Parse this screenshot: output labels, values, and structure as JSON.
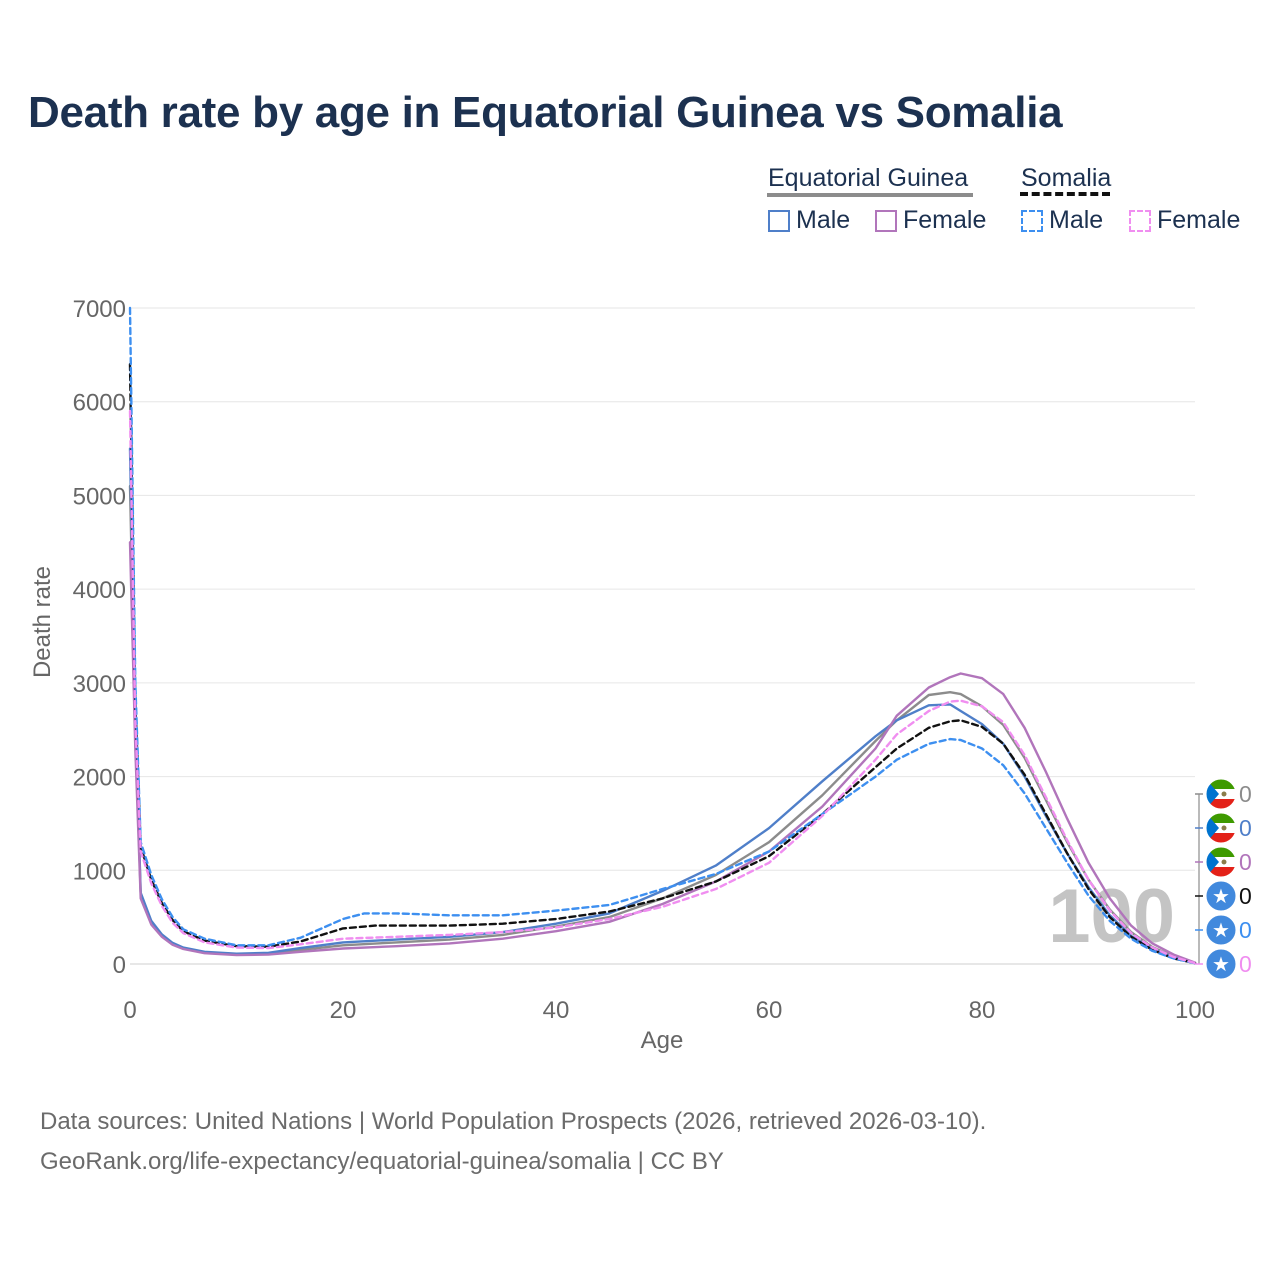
{
  "title": "Death rate by age in Equatorial Guinea vs Somalia",
  "legend": {
    "groups": [
      {
        "country": "Equatorial Guinea",
        "style": "solid",
        "color": "#8c8c8c",
        "items": [
          {
            "label": "Male",
            "color": "#4f7fc9"
          },
          {
            "label": "Female",
            "color": "#b175bb"
          }
        ]
      },
      {
        "country": "Somalia",
        "style": "dashed",
        "color": "#111111",
        "items": [
          {
            "label": "Male",
            "color": "#3d8ff0"
          },
          {
            "label": "Female",
            "color": "#f08ef0"
          }
        ]
      }
    ]
  },
  "year_watermark": "100",
  "badges": [
    {
      "flag": "equatorial-guinea",
      "value": "0",
      "color": "#8c8c8c"
    },
    {
      "flag": "equatorial-guinea",
      "value": "0",
      "color": "#4f7fc9"
    },
    {
      "flag": "equatorial-guinea",
      "value": "0",
      "color": "#b175bb"
    },
    {
      "flag": "somalia",
      "value": "0",
      "color": "#111111"
    },
    {
      "flag": "somalia",
      "value": "0",
      "color": "#3d8ff0"
    },
    {
      "flag": "somalia",
      "value": "0",
      "color": "#f08ef0"
    }
  ],
  "footer": {
    "line1": "Data sources: United Nations | World Population Prospects (2026, retrieved 2026-03-10).",
    "line2": "GeoRank.org/life-expectancy/equatorial-guinea/somalia | CC BY"
  },
  "chart_data": {
    "type": "line",
    "title": "Death rate by age in Equatorial Guinea vs Somalia",
    "xlabel": "Age",
    "ylabel": "Death rate",
    "xlim": [
      0,
      100
    ],
    "ylim": [
      0,
      7000
    ],
    "xticks": [
      0,
      20,
      40,
      60,
      80,
      100
    ],
    "yticks": [
      0,
      1000,
      2000,
      3000,
      4000,
      5000,
      6000,
      7000
    ],
    "grid": true,
    "series": [
      {
        "name": "Equatorial Guinea (total)",
        "color": "#8c8c8c",
        "dash": false,
        "points": [
          [
            0,
            5100
          ],
          [
            0.5,
            2500
          ],
          [
            1,
            750
          ],
          [
            2,
            450
          ],
          [
            3,
            310
          ],
          [
            4,
            220
          ],
          [
            5,
            170
          ],
          [
            7,
            125
          ],
          [
            10,
            105
          ],
          [
            13,
            110
          ],
          [
            16,
            150
          ],
          [
            20,
            200
          ],
          [
            25,
            230
          ],
          [
            30,
            260
          ],
          [
            35,
            310
          ],
          [
            40,
            400
          ],
          [
            45,
            500
          ],
          [
            50,
            700
          ],
          [
            55,
            950
          ],
          [
            60,
            1300
          ],
          [
            65,
            1800
          ],
          [
            70,
            2380
          ],
          [
            72,
            2600
          ],
          [
            75,
            2870
          ],
          [
            77,
            2900
          ],
          [
            78,
            2880
          ],
          [
            80,
            2750
          ],
          [
            82,
            2550
          ],
          [
            84,
            2200
          ],
          [
            86,
            1750
          ],
          [
            88,
            1300
          ],
          [
            90,
            900
          ],
          [
            92,
            580
          ],
          [
            94,
            340
          ],
          [
            96,
            180
          ],
          [
            98,
            80
          ],
          [
            100,
            10
          ]
        ]
      },
      {
        "name": "Equatorial Guinea Male",
        "color": "#4f7fc9",
        "dash": false,
        "points": [
          [
            0,
            5500
          ],
          [
            0.5,
            2600
          ],
          [
            1,
            760
          ],
          [
            2,
            460
          ],
          [
            3,
            315
          ],
          [
            4,
            225
          ],
          [
            5,
            175
          ],
          [
            7,
            130
          ],
          [
            10,
            110
          ],
          [
            13,
            120
          ],
          [
            16,
            170
          ],
          [
            20,
            230
          ],
          [
            25,
            260
          ],
          [
            30,
            290
          ],
          [
            35,
            340
          ],
          [
            40,
            430
          ],
          [
            45,
            540
          ],
          [
            50,
            780
          ],
          [
            55,
            1050
          ],
          [
            60,
            1450
          ],
          [
            65,
            1950
          ],
          [
            70,
            2430
          ],
          [
            72,
            2600
          ],
          [
            75,
            2760
          ],
          [
            77,
            2770
          ],
          [
            78,
            2700
          ],
          [
            80,
            2560
          ],
          [
            82,
            2350
          ],
          [
            84,
            2000
          ],
          [
            86,
            1580
          ],
          [
            88,
            1180
          ],
          [
            90,
            820
          ],
          [
            92,
            520
          ],
          [
            94,
            300
          ],
          [
            96,
            160
          ],
          [
            98,
            70
          ],
          [
            100,
            10
          ]
        ]
      },
      {
        "name": "Equatorial Guinea Female",
        "color": "#b175bb",
        "dash": false,
        "points": [
          [
            0,
            4500
          ],
          [
            0.5,
            2300
          ],
          [
            1,
            700
          ],
          [
            2,
            420
          ],
          [
            3,
            290
          ],
          [
            4,
            205
          ],
          [
            5,
            160
          ],
          [
            7,
            115
          ],
          [
            10,
            95
          ],
          [
            13,
            100
          ],
          [
            16,
            130
          ],
          [
            20,
            165
          ],
          [
            25,
            190
          ],
          [
            30,
            220
          ],
          [
            35,
            270
          ],
          [
            40,
            350
          ],
          [
            45,
            450
          ],
          [
            50,
            640
          ],
          [
            55,
            880
          ],
          [
            60,
            1200
          ],
          [
            65,
            1680
          ],
          [
            70,
            2300
          ],
          [
            72,
            2650
          ],
          [
            75,
            2950
          ],
          [
            77,
            3060
          ],
          [
            78,
            3100
          ],
          [
            80,
            3050
          ],
          [
            82,
            2880
          ],
          [
            84,
            2520
          ],
          [
            86,
            2050
          ],
          [
            88,
            1550
          ],
          [
            90,
            1080
          ],
          [
            92,
            700
          ],
          [
            94,
            410
          ],
          [
            96,
            220
          ],
          [
            98,
            100
          ],
          [
            100,
            15
          ]
        ]
      },
      {
        "name": "Somalia (total)",
        "color": "#111111",
        "dash": true,
        "points": [
          [
            0,
            6400
          ],
          [
            0.5,
            2800
          ],
          [
            1,
            1250
          ],
          [
            2,
            900
          ],
          [
            3,
            650
          ],
          [
            4,
            470
          ],
          [
            5,
            350
          ],
          [
            7,
            250
          ],
          [
            10,
            190
          ],
          [
            13,
            185
          ],
          [
            16,
            240
          ],
          [
            20,
            380
          ],
          [
            23,
            410
          ],
          [
            25,
            410
          ],
          [
            30,
            410
          ],
          [
            35,
            430
          ],
          [
            40,
            480
          ],
          [
            45,
            560
          ],
          [
            50,
            700
          ],
          [
            55,
            880
          ],
          [
            60,
            1150
          ],
          [
            65,
            1600
          ],
          [
            70,
            2100
          ],
          [
            72,
            2300
          ],
          [
            75,
            2520
          ],
          [
            77,
            2590
          ],
          [
            78,
            2600
          ],
          [
            80,
            2530
          ],
          [
            82,
            2350
          ],
          [
            84,
            2020
          ],
          [
            86,
            1600
          ],
          [
            88,
            1180
          ],
          [
            90,
            800
          ],
          [
            92,
            500
          ],
          [
            94,
            290
          ],
          [
            96,
            150
          ],
          [
            98,
            60
          ],
          [
            100,
            10
          ]
        ]
      },
      {
        "name": "Somalia Male",
        "color": "#3d8ff0",
        "dash": true,
        "points": [
          [
            0,
            7000
          ],
          [
            0.5,
            3000
          ],
          [
            1,
            1300
          ],
          [
            2,
            950
          ],
          [
            3,
            690
          ],
          [
            4,
            500
          ],
          [
            5,
            370
          ],
          [
            7,
            270
          ],
          [
            10,
            200
          ],
          [
            13,
            200
          ],
          [
            16,
            280
          ],
          [
            20,
            480
          ],
          [
            22,
            540
          ],
          [
            25,
            540
          ],
          [
            30,
            520
          ],
          [
            35,
            520
          ],
          [
            40,
            570
          ],
          [
            45,
            630
          ],
          [
            50,
            800
          ],
          [
            55,
            960
          ],
          [
            60,
            1200
          ],
          [
            65,
            1600
          ],
          [
            70,
            2000
          ],
          [
            72,
            2180
          ],
          [
            75,
            2350
          ],
          [
            77,
            2400
          ],
          [
            78,
            2390
          ],
          [
            80,
            2300
          ],
          [
            82,
            2120
          ],
          [
            84,
            1820
          ],
          [
            86,
            1450
          ],
          [
            88,
            1080
          ],
          [
            90,
            730
          ],
          [
            92,
            460
          ],
          [
            94,
            270
          ],
          [
            96,
            140
          ],
          [
            98,
            60
          ],
          [
            100,
            8
          ]
        ]
      },
      {
        "name": "Somalia Female",
        "color": "#f08ef0",
        "dash": true,
        "points": [
          [
            0,
            5900
          ],
          [
            0.5,
            2600
          ],
          [
            1,
            1200
          ],
          [
            2,
            860
          ],
          [
            3,
            620
          ],
          [
            4,
            440
          ],
          [
            5,
            330
          ],
          [
            7,
            230
          ],
          [
            10,
            175
          ],
          [
            13,
            170
          ],
          [
            16,
            210
          ],
          [
            20,
            270
          ],
          [
            25,
            290
          ],
          [
            30,
            310
          ],
          [
            35,
            340
          ],
          [
            40,
            390
          ],
          [
            45,
            480
          ],
          [
            50,
            610
          ],
          [
            55,
            800
          ],
          [
            60,
            1080
          ],
          [
            65,
            1580
          ],
          [
            70,
            2180
          ],
          [
            72,
            2450
          ],
          [
            75,
            2700
          ],
          [
            77,
            2800
          ],
          [
            78,
            2810
          ],
          [
            80,
            2750
          ],
          [
            82,
            2580
          ],
          [
            84,
            2230
          ],
          [
            86,
            1780
          ],
          [
            88,
            1320
          ],
          [
            90,
            900
          ],
          [
            92,
            570
          ],
          [
            94,
            330
          ],
          [
            96,
            175
          ],
          [
            98,
            75
          ],
          [
            100,
            10
          ]
        ]
      }
    ]
  }
}
